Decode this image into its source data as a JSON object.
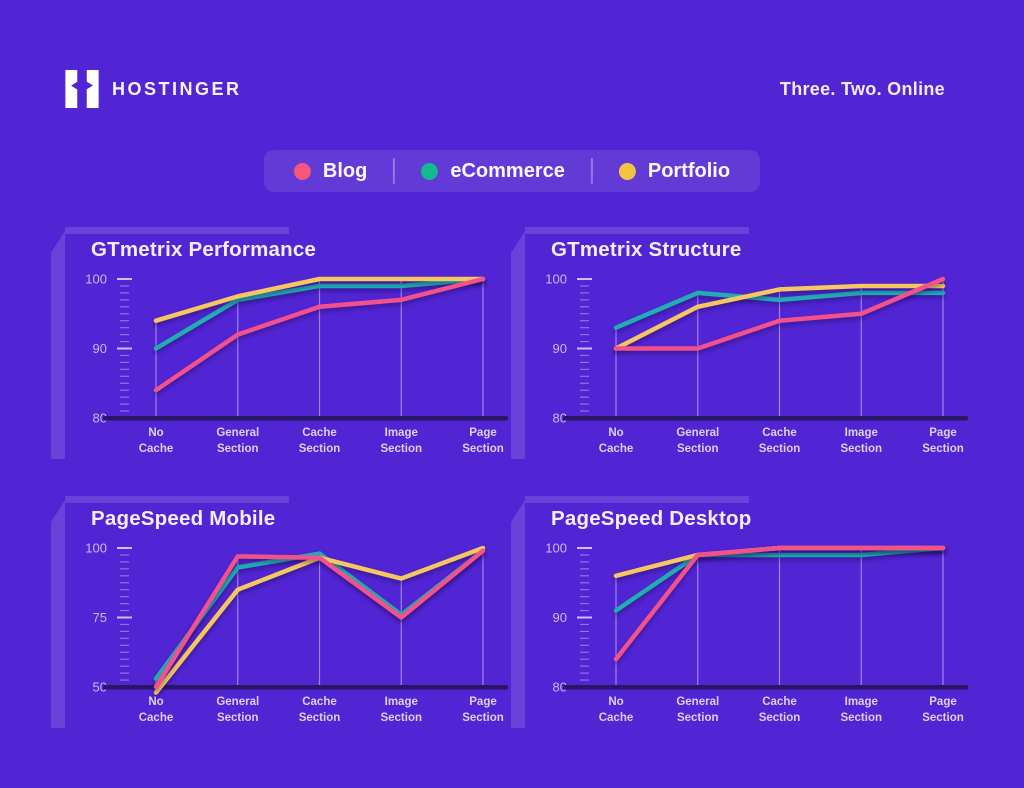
{
  "page": {
    "background_color": "#5125D3",
    "baseline_color": "#2A1763"
  },
  "header": {
    "brand": "HOSTINGER",
    "tagline": "Three. Two. Online"
  },
  "legend": {
    "items": [
      {
        "label": "Blog",
        "color": "#F4577B"
      },
      {
        "label": "eCommerce",
        "color": "#16B890"
      },
      {
        "label": "Portfolio",
        "color": "#F2C440"
      }
    ]
  },
  "chart_data": [
    {
      "type": "line",
      "title": "GTmetrix Performance",
      "categories": [
        "No Cache",
        "General Section",
        "Cache Section",
        "Image Section",
        "Page Section"
      ],
      "ylim": [
        80,
        100
      ],
      "yticks": [
        80,
        90,
        100
      ],
      "grid": "category-stems",
      "legend_position": "top-shared",
      "series": [
        {
          "name": "Blog",
          "color": "#F3518B",
          "values": [
            84,
            92,
            96,
            97,
            100
          ]
        },
        {
          "name": "eCommerce",
          "color": "#21AEB2",
          "values": [
            90,
            97,
            99,
            99,
            100
          ]
        },
        {
          "name": "Portfolio",
          "color": "#F5C75F",
          "values": [
            94,
            97.5,
            100,
            100,
            100
          ]
        }
      ]
    },
    {
      "type": "line",
      "title": "GTmetrix Structure",
      "categories": [
        "No Cache",
        "General Section",
        "Cache Section",
        "Image Section",
        "Page Section"
      ],
      "ylim": [
        80,
        100
      ],
      "yticks": [
        80,
        90,
        100
      ],
      "grid": "category-stems",
      "legend_position": "top-shared",
      "series": [
        {
          "name": "Blog",
          "color": "#F3518B",
          "values": [
            90,
            90,
            94,
            95,
            100
          ]
        },
        {
          "name": "eCommerce",
          "color": "#21AEB2",
          "values": [
            93,
            98,
            97,
            98,
            98
          ]
        },
        {
          "name": "Portfolio",
          "color": "#F5C75F",
          "values": [
            90,
            96,
            98.5,
            99,
            99
          ]
        }
      ]
    },
    {
      "type": "line",
      "title": "PageSpeed Mobile",
      "categories": [
        "No Cache",
        "General Section",
        "Cache Section",
        "Image Section",
        "Page Section"
      ],
      "ylim": [
        50,
        100
      ],
      "yticks": [
        50,
        75,
        100
      ],
      "grid": "category-stems",
      "legend_position": "top-shared",
      "series": [
        {
          "name": "Blog",
          "color": "#F3518B",
          "values": [
            50,
            97,
            96.5,
            75,
            99
          ]
        },
        {
          "name": "eCommerce",
          "color": "#21AEB2",
          "values": [
            53,
            93,
            98,
            76,
            99
          ]
        },
        {
          "name": "Portfolio",
          "color": "#F5C75F",
          "values": [
            48,
            85,
            96.5,
            89,
            100
          ]
        }
      ]
    },
    {
      "type": "line",
      "title": "PageSpeed Desktop",
      "categories": [
        "No Cache",
        "General Section",
        "Cache Section",
        "Image Section",
        "Page Section"
      ],
      "ylim": [
        80,
        100
      ],
      "yticks": [
        80,
        90,
        100
      ],
      "grid": "category-stems",
      "legend_position": "top-shared",
      "series": [
        {
          "name": "Blog",
          "color": "#F3518B",
          "values": [
            84,
            99,
            100,
            100,
            100
          ]
        },
        {
          "name": "eCommerce",
          "color": "#21AEB2",
          "values": [
            91,
            99,
            99,
            99,
            100
          ]
        },
        {
          "name": "Portfolio",
          "color": "#F5C75F",
          "values": [
            96,
            99,
            100,
            100,
            100
          ]
        }
      ]
    }
  ]
}
